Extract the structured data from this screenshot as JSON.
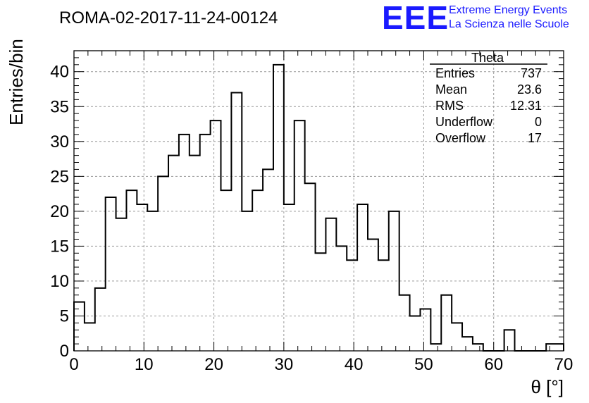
{
  "header": {
    "run_title": "ROMA-02-2017-11-24-00124",
    "logo_text": "EEE",
    "logo_line1": "Extreme Energy Events",
    "logo_line2": "La Scienza nelle Scuole",
    "logo_color": "#1a1aff"
  },
  "stats": {
    "title": "Theta",
    "rows": [
      {
        "label": "Entries",
        "value": "737"
      },
      {
        "label": "Mean",
        "value": "23.6"
      },
      {
        "label": "RMS",
        "value": "12.31"
      },
      {
        "label": "Underflow",
        "value": "0"
      },
      {
        "label": "Overflow",
        "value": "17"
      }
    ]
  },
  "chart_data": {
    "type": "bar",
    "style": "step-histogram",
    "bin_width": 1.5,
    "x_start": 0,
    "values": [
      7,
      4,
      9,
      22,
      19,
      23,
      21,
      20,
      25,
      28,
      31,
      28,
      31,
      33,
      23,
      37,
      20,
      23,
      26,
      41,
      21,
      33,
      24,
      14,
      19,
      15,
      13,
      21,
      16,
      13,
      20,
      8,
      5,
      6,
      1,
      8,
      4,
      2,
      1,
      0,
      0,
      3,
      0,
      0,
      0,
      1,
      1
    ],
    "xlabel": "θ [°]",
    "ylabel": "Entries/bin",
    "xlim": [
      0,
      70
    ],
    "ylim": [
      0,
      43
    ],
    "xticks": [
      0,
      10,
      20,
      30,
      40,
      50,
      60,
      70
    ],
    "yticks": [
      0,
      5,
      10,
      15,
      20,
      25,
      30,
      35,
      40
    ],
    "grid": true,
    "legend": "top-right stats box"
  }
}
